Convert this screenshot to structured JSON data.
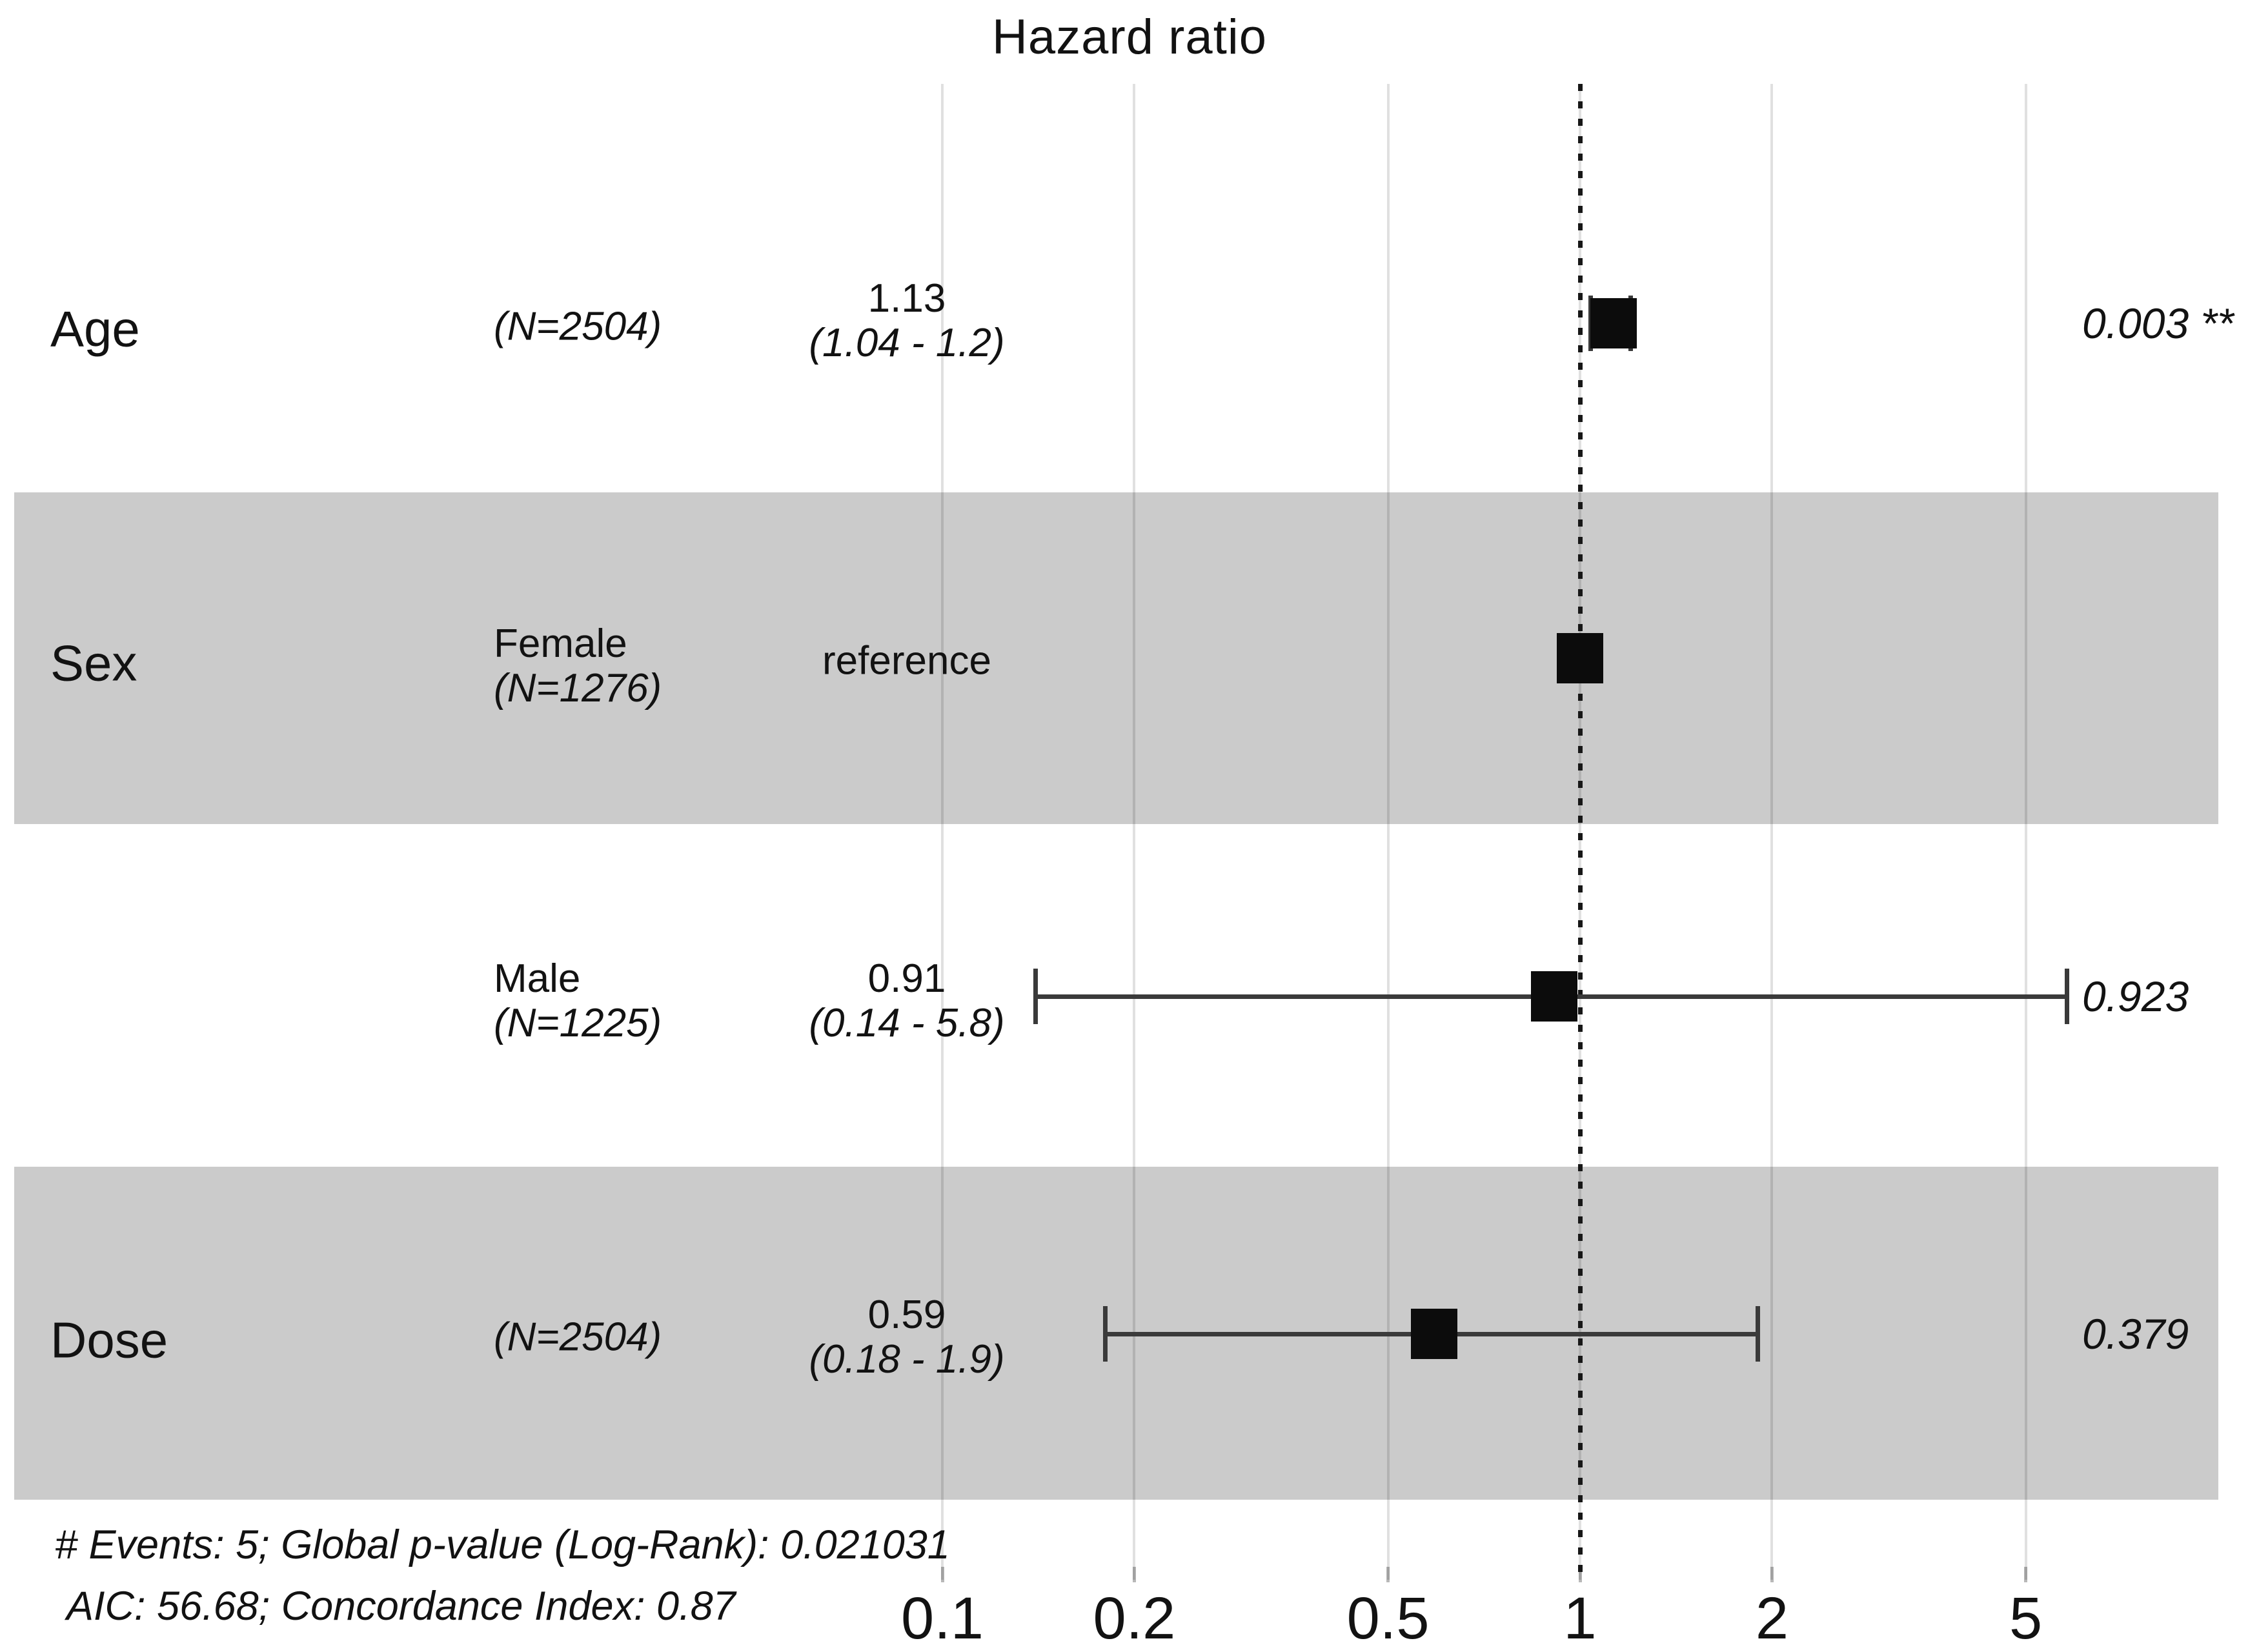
{
  "chart_data": {
    "type": "forest",
    "title": "Hazard ratio",
    "x_axis": {
      "scale": "log10",
      "ticks": [
        "0.1",
        "0.2",
        "0.5",
        "1",
        "2",
        "5"
      ],
      "tick_values": [
        0.1,
        0.2,
        0.5,
        1,
        2,
        5
      ],
      "reference_value": 1,
      "grid": true
    },
    "rows": [
      {
        "variable": "Age",
        "level": "",
        "n": "(N=2504)",
        "estimate_label": "1.13",
        "ci_label": "(1.04 - 1.2)",
        "p": "0.003 **",
        "hr": 1.13,
        "ci_low": 1.04,
        "ci_high": 1.2,
        "reference": false,
        "striped": false
      },
      {
        "variable": "Sex",
        "level": "Female",
        "n": "(N=1276)",
        "estimate_label": "reference",
        "ci_label": "",
        "p": "",
        "hr": 1,
        "ci_low": null,
        "ci_high": null,
        "reference": true,
        "striped": true
      },
      {
        "variable": "",
        "level": "Male",
        "n": "(N=1225)",
        "estimate_label": "0.91",
        "ci_label": "(0.14 - 5.8)",
        "p": "0.923",
        "hr": 0.91,
        "ci_low": 0.14,
        "ci_high": 5.8,
        "reference": false,
        "striped": false
      },
      {
        "variable": "Dose",
        "level": "",
        "n": "(N=2504)",
        "estimate_label": "0.59",
        "ci_label": "(0.18 - 1.9)",
        "p": "0.379",
        "hr": 0.59,
        "ci_low": 0.18,
        "ci_high": 1.9,
        "reference": false,
        "striped": true
      }
    ],
    "footer": [
      "# Events: 5; Global p-value (Log-Rank): 0.021031",
      "AIC: 56.68; Concordance Index: 0.87"
    ]
  },
  "colors": {
    "background": "#ffffff",
    "stripe_band": "#cbcbcb",
    "marker": "#0c0c0c",
    "error_bar": "#3a3a3a",
    "gridline": "rgba(0,0,0,0.12)",
    "reference_line": "#171717",
    "text": "#121212"
  }
}
